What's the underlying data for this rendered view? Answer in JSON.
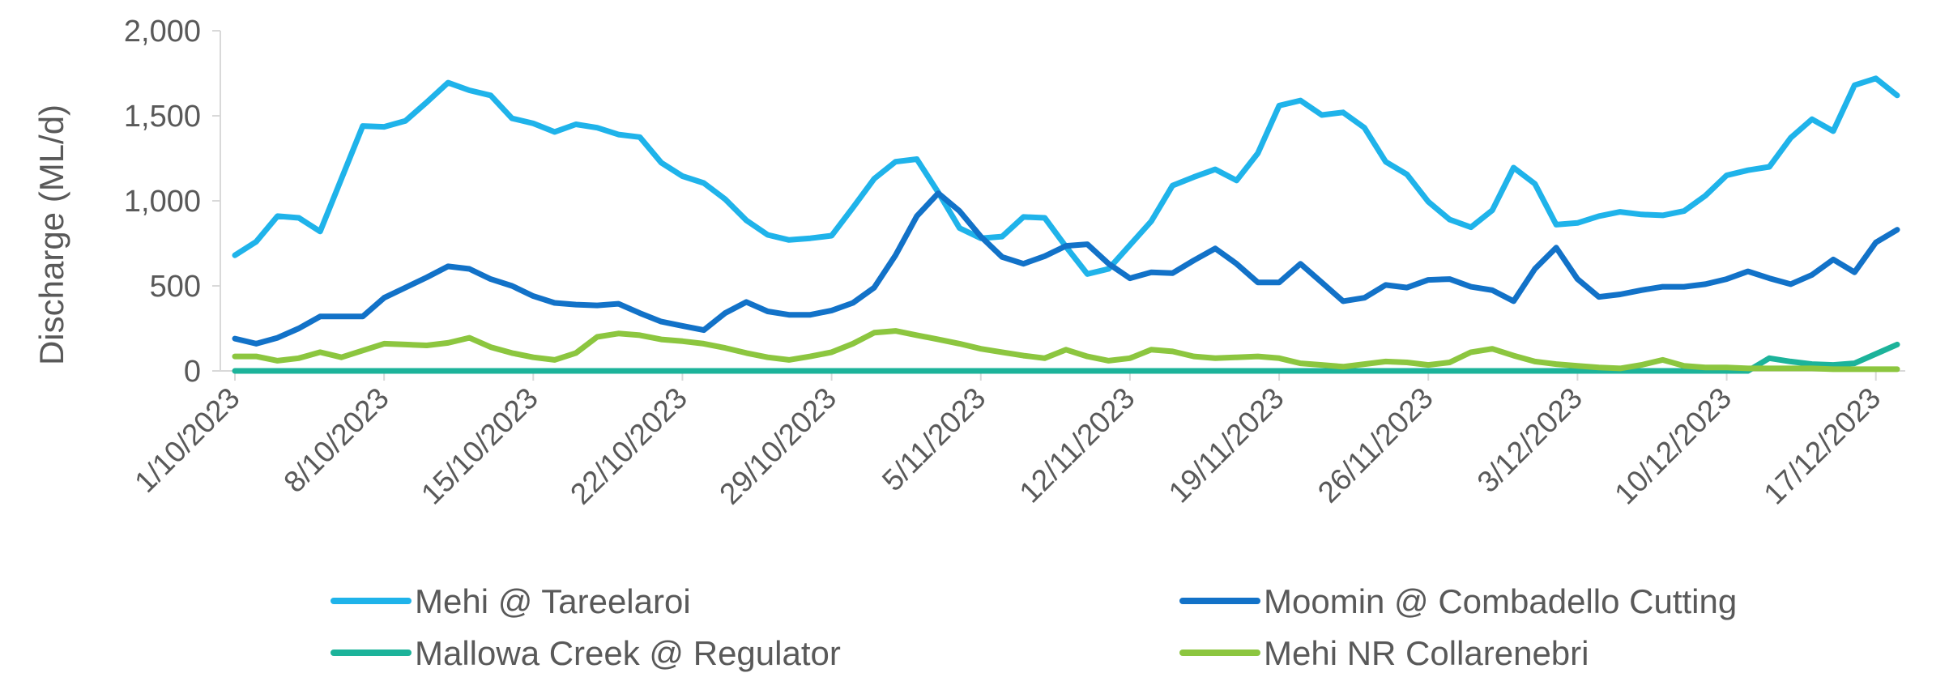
{
  "chart_data": {
    "type": "line",
    "title": "",
    "xlabel": "",
    "ylabel": "Discharge (ML/d)",
    "ylim": [
      0,
      2000
    ],
    "yticks": [
      "0",
      "500",
      "1,000",
      "1,500",
      "2,000"
    ],
    "ytick_values": [
      0,
      500,
      1000,
      1500,
      2000
    ],
    "x_start": "1/10/2023",
    "x_end": "19/12/2023",
    "x_tick_labels": [
      "1/10/2023",
      "8/10/2023",
      "15/10/2023",
      "22/10/2023",
      "29/10/2023",
      "5/11/2023",
      "12/11/2023",
      "19/11/2023",
      "26/11/2023",
      "3/12/2023",
      "10/12/2023",
      "17/12/2023"
    ],
    "legend_position": "bottom",
    "series": [
      {
        "name": "Mehi @ Tareelaroi",
        "color": "#1fb3ea",
        "values": [
          680,
          760,
          910,
          900,
          820,
          1130,
          1440,
          1435,
          1470,
          1580,
          1695,
          1650,
          1620,
          1485,
          1455,
          1405,
          1450,
          1430,
          1390,
          1375,
          1225,
          1145,
          1105,
          1010,
          885,
          800,
          770,
          780,
          795,
          960,
          1130,
          1230,
          1245,
          1050,
          840,
          780,
          790,
          905,
          900,
          730,
          570,
          600,
          740,
          880,
          1090,
          1140,
          1185,
          1120,
          1280,
          1560,
          1590,
          1505,
          1520,
          1430,
          1230,
          1155,
          995,
          890,
          845,
          945,
          1195,
          1100,
          860,
          870,
          910,
          935,
          920,
          915,
          940,
          1030,
          1150,
          1180,
          1200,
          1370,
          1480,
          1410,
          1680,
          1720,
          1620
        ]
      },
      {
        "name": "Moomin @ Combadello Cutting",
        "color": "#1272c8",
        "values": [
          190,
          160,
          195,
          250,
          320,
          320,
          320,
          430,
          490,
          550,
          615,
          600,
          540,
          500,
          440,
          400,
          390,
          385,
          395,
          340,
          290,
          265,
          240,
          340,
          405,
          350,
          330,
          330,
          355,
          400,
          490,
          680,
          910,
          1045,
          940,
          790,
          670,
          630,
          675,
          735,
          745,
          630,
          545,
          580,
          575,
          650,
          720,
          630,
          520,
          520,
          630,
          520,
          410,
          430,
          505,
          490,
          535,
          540,
          495,
          475,
          410,
          600,
          725,
          540,
          435,
          450,
          475,
          495,
          495,
          510,
          540,
          585,
          545,
          510,
          565,
          655,
          580,
          755,
          830
        ]
      },
      {
        "name": "Mallowa Creek @ Regulator",
        "color": "#1cb39a",
        "values": [
          0,
          0,
          0,
          0,
          0,
          0,
          0,
          0,
          0,
          0,
          0,
          0,
          0,
          0,
          0,
          0,
          0,
          0,
          0,
          0,
          0,
          0,
          0,
          0,
          0,
          0,
          0,
          0,
          0,
          0,
          0,
          0,
          0,
          0,
          0,
          0,
          0,
          0,
          0,
          0,
          0,
          0,
          0,
          0,
          0,
          0,
          0,
          0,
          0,
          0,
          0,
          0,
          0,
          0,
          0,
          0,
          0,
          0,
          0,
          0,
          0,
          0,
          0,
          0,
          0,
          0,
          0,
          0,
          0,
          0,
          0,
          0,
          75,
          55,
          40,
          35,
          45,
          100,
          155
        ]
      },
      {
        "name": "Mehi NR Collarenebri",
        "color": "#8cc63f",
        "values": [
          85,
          85,
          60,
          75,
          110,
          80,
          120,
          160,
          155,
          150,
          165,
          195,
          140,
          105,
          80,
          65,
          105,
          200,
          220,
          210,
          185,
          175,
          160,
          135,
          105,
          80,
          65,
          85,
          110,
          160,
          225,
          235,
          210,
          185,
          160,
          130,
          110,
          90,
          75,
          125,
          85,
          60,
          75,
          125,
          115,
          85,
          75,
          80,
          85,
          75,
          45,
          35,
          25,
          40,
          55,
          50,
          35,
          50,
          110,
          130,
          90,
          55,
          40,
          30,
          20,
          15,
          35,
          65,
          30,
          20,
          20,
          15,
          15,
          15,
          15,
          10,
          10,
          10,
          10
        ]
      }
    ]
  }
}
